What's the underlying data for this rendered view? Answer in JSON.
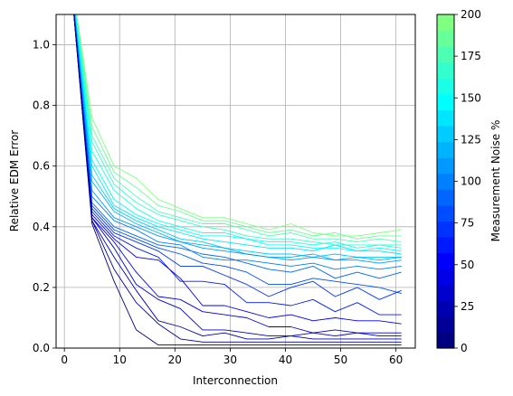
{
  "chart_data": {
    "type": "line",
    "xlabel": "Interconnection",
    "ylabel": "Relative EDM Error",
    "xlim": [
      -1.5,
      63.5
    ],
    "ylim": [
      0.0,
      1.1
    ],
    "xticks": [
      0,
      10,
      20,
      30,
      40,
      50,
      60
    ],
    "xtick_labels": [
      "0",
      "10",
      "20",
      "30",
      "40",
      "50",
      "60"
    ],
    "yticks": [
      0.0,
      0.2,
      0.4,
      0.6,
      0.8,
      1.0
    ],
    "ytick_labels": [
      "0.0",
      "0.2",
      "0.4",
      "0.6",
      "0.8",
      "1.0"
    ],
    "grid": true,
    "colorbar": {
      "label": "Measurement Noise %",
      "range": [
        0,
        200
      ],
      "ticks": [
        0,
        25,
        50,
        75,
        100,
        125,
        150,
        175,
        200
      ],
      "tick_labels": [
        "0",
        "25",
        "50",
        "75",
        "100",
        "125",
        "150",
        "175",
        "200"
      ],
      "levels": 21,
      "colormap": "jet-low (navy → blue → cyan → green)",
      "color_stops": [
        "#000080",
        "#0000ff",
        "#0080ff",
        "#00ffff",
        "#80ff80"
      ]
    },
    "x": [
      1,
      5,
      9,
      13,
      17,
      21,
      25,
      29,
      33,
      37,
      41,
      45,
      49,
      53,
      57,
      61
    ],
    "series": [
      {
        "noise": 0,
        "values": [
          1.25,
          0.41,
          0.22,
          0.06,
          0.01,
          0.01,
          0.01,
          0.01,
          0.01,
          0.01,
          0.01,
          0.01,
          0.01,
          0.01,
          0.01,
          0.01
        ]
      },
      {
        "noise": 10,
        "values": [
          1.25,
          0.42,
          0.26,
          0.15,
          0.08,
          0.03,
          0.02,
          0.02,
          0.02,
          0.02,
          0.02,
          0.02,
          0.02,
          0.02,
          0.02,
          0.02
        ]
      },
      {
        "noise": 20,
        "values": [
          1.25,
          0.42,
          0.3,
          0.19,
          0.09,
          0.07,
          0.04,
          0.05,
          0.03,
          0.03,
          0.04,
          0.03,
          0.03,
          0.03,
          0.03,
          0.03
        ]
      },
      {
        "noise": 30,
        "values": [
          1.25,
          0.43,
          0.33,
          0.21,
          0.16,
          0.13,
          0.06,
          0.06,
          0.05,
          0.04,
          0.04,
          0.05,
          0.04,
          0.05,
          0.04,
          0.04
        ]
      },
      {
        "noise": 40,
        "values": [
          1.25,
          0.43,
          0.35,
          0.25,
          0.17,
          0.16,
          0.12,
          0.11,
          0.1,
          0.07,
          0.07,
          0.05,
          0.06,
          0.05,
          0.05,
          0.05
        ]
      },
      {
        "noise": 50,
        "values": [
          1.25,
          0.44,
          0.36,
          0.3,
          0.29,
          0.23,
          0.14,
          0.14,
          0.12,
          0.1,
          0.11,
          0.09,
          0.1,
          0.09,
          0.09,
          0.08
        ]
      },
      {
        "noise": 60,
        "values": [
          1.25,
          0.45,
          0.37,
          0.33,
          0.3,
          0.22,
          0.22,
          0.21,
          0.15,
          0.15,
          0.14,
          0.16,
          0.12,
          0.15,
          0.11,
          0.11
        ]
      },
      {
        "noise": 70,
        "values": [
          1.25,
          0.46,
          0.38,
          0.35,
          0.32,
          0.27,
          0.27,
          0.24,
          0.21,
          0.17,
          0.2,
          0.22,
          0.17,
          0.2,
          0.16,
          0.19
        ]
      },
      {
        "noise": 80,
        "values": [
          1.25,
          0.47,
          0.39,
          0.36,
          0.33,
          0.31,
          0.28,
          0.27,
          0.25,
          0.21,
          0.21,
          0.23,
          0.22,
          0.21,
          0.2,
          0.18
        ]
      },
      {
        "noise": 90,
        "values": [
          1.25,
          0.48,
          0.4,
          0.37,
          0.34,
          0.33,
          0.31,
          0.3,
          0.28,
          0.26,
          0.25,
          0.27,
          0.23,
          0.25,
          0.23,
          0.25
        ]
      },
      {
        "noise": 100,
        "values": [
          1.25,
          0.5,
          0.42,
          0.39,
          0.35,
          0.34,
          0.3,
          0.29,
          0.29,
          0.28,
          0.27,
          0.28,
          0.26,
          0.27,
          0.26,
          0.27
        ]
      },
      {
        "noise": 110,
        "values": [
          1.25,
          0.52,
          0.43,
          0.4,
          0.37,
          0.35,
          0.33,
          0.32,
          0.31,
          0.3,
          0.29,
          0.3,
          0.29,
          0.29,
          0.28,
          0.29
        ]
      },
      {
        "noise": 120,
        "values": [
          1.25,
          0.55,
          0.45,
          0.41,
          0.38,
          0.35,
          0.34,
          0.33,
          0.31,
          0.3,
          0.3,
          0.31,
          0.29,
          0.3,
          0.29,
          0.3
        ]
      },
      {
        "noise": 130,
        "values": [
          1.25,
          0.57,
          0.46,
          0.42,
          0.39,
          0.36,
          0.35,
          0.33,
          0.32,
          0.31,
          0.31,
          0.3,
          0.31,
          0.3,
          0.3,
          0.3
        ]
      },
      {
        "noise": 140,
        "values": [
          1.25,
          0.6,
          0.47,
          0.43,
          0.4,
          0.38,
          0.36,
          0.35,
          0.34,
          0.33,
          0.33,
          0.32,
          0.34,
          0.32,
          0.32,
          0.31
        ]
      },
      {
        "noise": 150,
        "values": [
          1.25,
          0.62,
          0.49,
          0.44,
          0.41,
          0.39,
          0.37,
          0.37,
          0.36,
          0.34,
          0.34,
          0.33,
          0.33,
          0.32,
          0.33,
          0.32
        ]
      },
      {
        "noise": 160,
        "values": [
          1.25,
          0.65,
          0.52,
          0.46,
          0.42,
          0.4,
          0.38,
          0.38,
          0.36,
          0.35,
          0.35,
          0.34,
          0.35,
          0.33,
          0.34,
          0.33
        ]
      },
      {
        "noise": 170,
        "values": [
          1.25,
          0.68,
          0.54,
          0.48,
          0.44,
          0.42,
          0.4,
          0.39,
          0.37,
          0.36,
          0.36,
          0.35,
          0.34,
          0.34,
          0.34,
          0.34
        ]
      },
      {
        "noise": 180,
        "values": [
          1.25,
          0.7,
          0.56,
          0.5,
          0.45,
          0.43,
          0.41,
          0.41,
          0.39,
          0.37,
          0.38,
          0.36,
          0.36,
          0.35,
          0.36,
          0.35
        ]
      },
      {
        "noise": 190,
        "values": [
          1.25,
          0.73,
          0.58,
          0.53,
          0.47,
          0.45,
          0.42,
          0.42,
          0.4,
          0.38,
          0.39,
          0.37,
          0.38,
          0.36,
          0.37,
          0.37
        ]
      },
      {
        "noise": 200,
        "values": [
          1.25,
          0.76,
          0.6,
          0.56,
          0.49,
          0.46,
          0.43,
          0.43,
          0.41,
          0.39,
          0.41,
          0.38,
          0.37,
          0.37,
          0.38,
          0.39
        ]
      }
    ]
  }
}
